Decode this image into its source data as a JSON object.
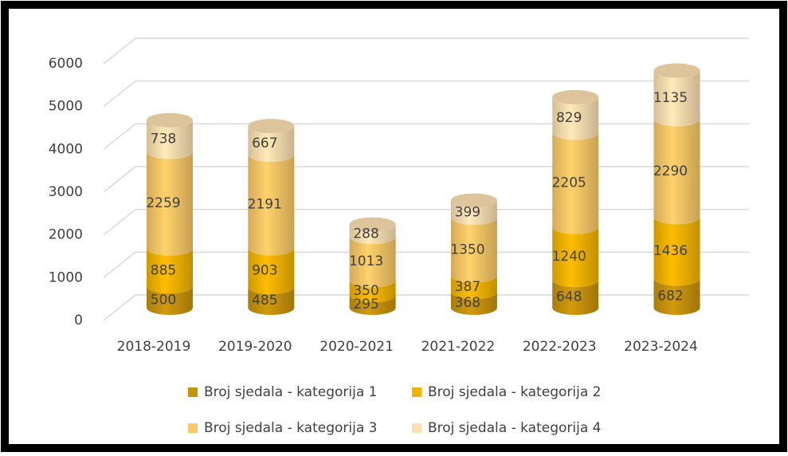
{
  "chart_data": {
    "type": "bar3d_stacked",
    "categories": [
      "2018-2019",
      "2019-2020",
      "2020-2021",
      "2021-2022",
      "2022-2023",
      "2023-2024"
    ],
    "series": [
      {
        "name": "Broj sjedala - kategorija 1",
        "color": "#c8930c",
        "values": [
          500,
          485,
          295,
          368,
          648,
          682
        ]
      },
      {
        "name": "Broj sjedala - kategorija 2",
        "color": "#f2b400",
        "values": [
          885,
          903,
          350,
          387,
          1240,
          1436
        ]
      },
      {
        "name": "Broj sjedala - kategorija 3",
        "color": "#f9c867",
        "values": [
          2259,
          2191,
          1013,
          1350,
          2205,
          2290
        ]
      },
      {
        "name": "Broj sjedala - kategorija 4",
        "color": "#fbdfb0",
        "values": [
          738,
          667,
          288,
          399,
          829,
          1135
        ]
      }
    ],
    "ylim": [
      0,
      6000
    ],
    "yticks": [
      0,
      1000,
      2000,
      3000,
      4000,
      5000,
      6000
    ],
    "grid": true,
    "legend": "bottom"
  }
}
